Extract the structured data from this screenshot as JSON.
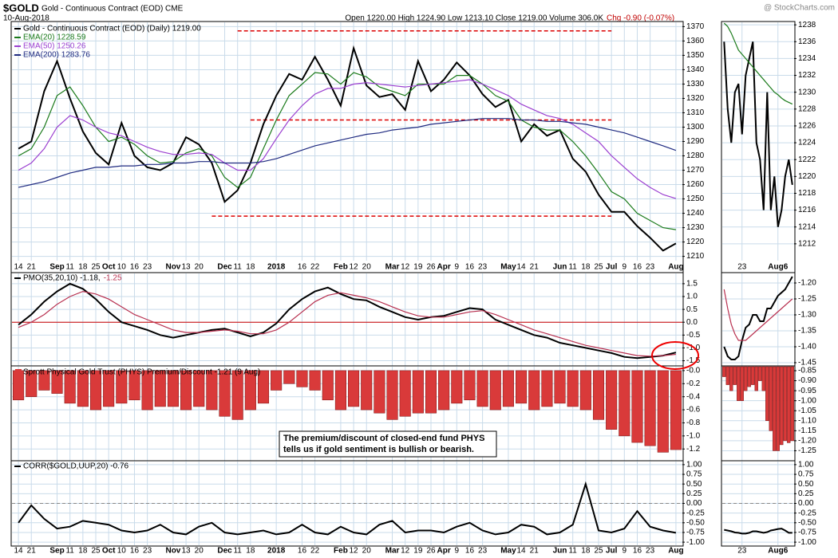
{
  "header": {
    "symbol": "$GOLD",
    "name": "Gold - Continuous Contract (EOD) CME",
    "date": "10-Aug-2018",
    "quote": "Open 1220.00 High 1224.90 Low 1213.10 Close 1219.00 Volume 306.0K",
    "change": "Chg -0.90 (-0.07%)",
    "watermark": "@ StockCharts.com"
  },
  "chart_data": [
    {
      "type": "line",
      "categories": [
        "14",
        "21",
        null,
        "Sep",
        "11",
        "18",
        "25",
        "Oct",
        "10",
        "16",
        "23",
        null,
        "Nov",
        "13",
        "20",
        null,
        "Dec",
        "11",
        "18",
        null,
        "2018",
        null,
        "16",
        "22",
        null,
        "Feb",
        "12",
        "20",
        null,
        "Mar",
        "12",
        "19",
        "26",
        "Apr",
        "9",
        "16",
        "23",
        null,
        "May",
        "14",
        "21",
        null,
        "Jun",
        "11",
        "18",
        "25",
        "Jul",
        "9",
        "16",
        "23",
        null,
        "Aug"
      ],
      "series": [
        {
          "name": "Gold - Continuous Contract (EOD) (Daily) 1219.00",
          "color": "#000000",
          "values": [
            1285,
            1290,
            1325,
            1346,
            1320,
            1297,
            1282,
            1274,
            1303,
            1280,
            1272,
            1270,
            1275,
            1293,
            1288,
            1275,
            1248,
            1256,
            1275,
            1302,
            1322,
            1337,
            1333,
            1349,
            1333,
            1315,
            1355,
            1329,
            1321,
            1323,
            1312,
            1346,
            1325,
            1333,
            1345,
            1336,
            1323,
            1314,
            1319,
            1290,
            1302,
            1294,
            1298,
            1278,
            1269,
            1253,
            1241,
            1241,
            1231,
            1223,
            1214,
            1219
          ]
        },
        {
          "name": "EMA(20) 1228.59",
          "color": "#1a7a1a",
          "values": [
            1280,
            1285,
            1300,
            1322,
            1328,
            1315,
            1300,
            1290,
            1293,
            1288,
            1280,
            1275,
            1276,
            1282,
            1285,
            1280,
            1265,
            1258,
            1265,
            1285,
            1305,
            1322,
            1330,
            1338,
            1337,
            1330,
            1338,
            1335,
            1328,
            1325,
            1322,
            1330,
            1330,
            1330,
            1336,
            1336,
            1330,
            1322,
            1318,
            1305,
            1300,
            1298,
            1298,
            1290,
            1280,
            1268,
            1255,
            1250,
            1240,
            1235,
            1230,
            1228.59
          ]
        },
        {
          "name": "EMA(50) 1250.26",
          "color": "#9b3fd0",
          "values": [
            1270,
            1275,
            1285,
            1300,
            1308,
            1305,
            1300,
            1296,
            1294,
            1290,
            1286,
            1283,
            1281,
            1281,
            1282,
            1281,
            1275,
            1270,
            1270,
            1278,
            1292,
            1305,
            1315,
            1323,
            1327,
            1327,
            1330,
            1331,
            1330,
            1329,
            1328,
            1329,
            1330,
            1331,
            1332,
            1333,
            1330,
            1326,
            1322,
            1316,
            1312,
            1308,
            1306,
            1302,
            1296,
            1290,
            1280,
            1272,
            1264,
            1258,
            1253,
            1250.26
          ]
        },
        {
          "name": "EMA(200) 1283.76",
          "color": "#1f2a80",
          "values": [
            1258,
            1260,
            1262,
            1265,
            1268,
            1270,
            1272,
            1272,
            1273,
            1273,
            1274,
            1274,
            1275,
            1275,
            1276,
            1276,
            1275,
            1275,
            1275,
            1276,
            1278,
            1281,
            1284,
            1287,
            1289,
            1291,
            1293,
            1295,
            1296,
            1298,
            1299,
            1300,
            1302,
            1303,
            1304,
            1305,
            1306,
            1306,
            1306,
            1305,
            1305,
            1304,
            1304,
            1303,
            1302,
            1300,
            1298,
            1296,
            1293,
            1290,
            1287,
            1283.76
          ]
        }
      ],
      "ylim": [
        1207,
        1373
      ],
      "yticks": [
        1210,
        1220,
        1230,
        1240,
        1250,
        1260,
        1270,
        1280,
        1290,
        1300,
        1310,
        1320,
        1330,
        1340,
        1350,
        1360,
        1370
      ],
      "hlines": [
        1367,
        1305,
        1238
      ],
      "hline_color": "#dd0000",
      "grid": true
    },
    {
      "type": "line",
      "series": [
        {
          "name": "PMO(35,20,10) -1.18,",
          "color": "#000000",
          "values": [
            -0.1,
            0.3,
            0.8,
            1.2,
            1.5,
            1.3,
            0.9,
            0.4,
            0.0,
            -0.15,
            -0.3,
            -0.5,
            -0.6,
            -0.5,
            -0.4,
            -0.3,
            -0.25,
            -0.4,
            -0.55,
            -0.4,
            -0.05,
            0.5,
            0.9,
            1.2,
            1.35,
            1.1,
            0.9,
            0.85,
            0.6,
            0.4,
            0.2,
            0.1,
            0.2,
            0.25,
            0.4,
            0.55,
            0.5,
            0.1,
            -0.1,
            -0.3,
            -0.5,
            -0.6,
            -0.8,
            -0.9,
            -1.0,
            -1.1,
            -1.2,
            -1.35,
            -1.4,
            -1.35,
            -1.3,
            -1.18
          ]
        },
        {
          "name": "-1.25",
          "color": "#b8304f",
          "values": [
            -0.2,
            0.0,
            0.3,
            0.7,
            1.0,
            1.2,
            1.1,
            0.9,
            0.6,
            0.3,
            0.1,
            -0.1,
            -0.3,
            -0.4,
            -0.4,
            -0.35,
            -0.3,
            -0.35,
            -0.45,
            -0.45,
            -0.3,
            0.0,
            0.4,
            0.8,
            1.05,
            1.15,
            1.05,
            0.95,
            0.8,
            0.6,
            0.4,
            0.25,
            0.2,
            0.2,
            0.3,
            0.4,
            0.45,
            0.3,
            0.1,
            -0.1,
            -0.3,
            -0.45,
            -0.6,
            -0.75,
            -0.9,
            -1.0,
            -1.1,
            -1.2,
            -1.3,
            -1.32,
            -1.3,
            -1.25
          ]
        }
      ],
      "ylim": [
        -1.7,
        1.9
      ],
      "yticks": [
        1.5,
        {
          "value": 1,
          "label": "1.0"
        },
        0.5,
        {
          "value": 0,
          "label": "0.0"
        },
        -0.5,
        {
          "value": -1,
          "label": "-1.0"
        },
        -1.5
      ],
      "hlines": [
        0
      ],
      "hline_color": "#cc0000",
      "grid": true
    },
    {
      "type": "bar",
      "title": "Sprott Physical Gold Trust (PHYS) Premium/Discount -1.21 (9 Aug)",
      "color": "#d93a3a",
      "values": [
        -0.45,
        -0.4,
        -0.3,
        -0.35,
        -0.5,
        -0.55,
        -0.6,
        -0.55,
        -0.5,
        -0.45,
        -0.6,
        -0.55,
        -0.55,
        -0.6,
        -0.55,
        -0.6,
        -0.7,
        -0.75,
        -0.6,
        -0.5,
        -0.3,
        -0.2,
        -0.25,
        -0.3,
        -0.45,
        -0.6,
        -0.55,
        -0.6,
        -0.65,
        -0.75,
        -0.7,
        -0.65,
        -0.65,
        -0.6,
        -0.5,
        -0.45,
        -0.55,
        -0.6,
        -0.55,
        -0.5,
        -0.6,
        -0.55,
        -0.5,
        -0.55,
        -0.6,
        -0.75,
        -0.9,
        -1.0,
        -1.1,
        -1.15,
        -1.25,
        -1.21
      ],
      "annotation": [
        "The premium/discount of closed-end fund PHYS",
        "tells us if gold sentiment is bullish or bearish."
      ],
      "ylim": [
        -1.38,
        0.06
      ],
      "yticks": [
        {
          "value": 0,
          "label": "-0.0"
        },
        -0.2,
        -0.4,
        -0.6,
        -0.8,
        {
          "value": -1,
          "label": "-1.0"
        },
        -1.2
      ],
      "grid": true
    },
    {
      "type": "line",
      "series": [
        {
          "name": "CORR($GOLD,UUP,20) -0.76",
          "color": "#000000",
          "values": [
            -0.5,
            -0.05,
            -0.4,
            -0.65,
            -0.6,
            -0.45,
            -0.5,
            -0.55,
            -0.7,
            -0.75,
            -0.7,
            -0.55,
            -0.75,
            -0.8,
            -0.6,
            -0.5,
            -0.75,
            -0.8,
            -0.75,
            -0.7,
            -0.8,
            -0.75,
            -0.55,
            -0.75,
            -0.8,
            -0.6,
            -0.75,
            -0.8,
            -0.55,
            -0.45,
            -0.75,
            -0.7,
            -0.7,
            -0.75,
            -0.6,
            -0.5,
            -0.7,
            -0.8,
            -0.75,
            -0.55,
            -0.6,
            -0.8,
            -0.75,
            -0.55,
            0.5,
            -0.7,
            -0.75,
            -0.65,
            -0.2,
            -0.6,
            -0.7,
            -0.76
          ]
        }
      ],
      "ylim": [
        -1.08,
        1.08
      ],
      "yticks": [
        {
          "value": 1,
          "label": "1.00"
        },
        0.75,
        {
          "value": 0.5,
          "label": "0.50"
        },
        0.25,
        {
          "value": 0,
          "label": "0.00"
        },
        -0.25,
        {
          "value": -0.5,
          "label": "-0.50"
        },
        -0.75,
        {
          "value": -1,
          "label": "-1.00"
        }
      ],
      "hlines": [
        0
      ],
      "hline_color": "#888888",
      "grid": true
    },
    {
      "type": "line",
      "categories": [
        null,
        null,
        null,
        null,
        null,
        "23",
        null,
        null,
        null,
        null,
        null,
        null,
        null,
        null,
        null,
        "Aug6",
        null,
        null,
        null,
        null
      ],
      "series": [
        {
          "color": "#000000",
          "values": [
            1236,
            1228,
            1224,
            1230,
            1231,
            1225,
            1232,
            1234,
            1236,
            1224,
            1222,
            1216,
            1230,
            1216,
            1220,
            1214,
            1216,
            1220,
            1222,
            1219
          ]
        },
        {
          "color": "#1a7a1a",
          "values": [
            1238.2,
            1237.8,
            1237,
            1236,
            1235,
            1234.5,
            1234,
            1233.5,
            1233,
            1232.5,
            1232,
            1231.5,
            1231,
            1230.5,
            1230,
            1229.7,
            1229.3,
            1229,
            1228.8,
            1228.59
          ]
        }
      ],
      "ylim": [
        1210,
        1238.3
      ],
      "yticks": [
        1212,
        1214,
        1216,
        1218,
        1220,
        1222,
        1224,
        1226,
        1228,
        1230,
        1232,
        1234,
        1236,
        1238
      ],
      "grid": true
    },
    {
      "type": "line",
      "series": [
        {
          "color": "#000000",
          "values": [
            -1.4,
            -1.43,
            -1.44,
            -1.44,
            -1.43,
            -1.38,
            -1.34,
            -1.33,
            -1.3,
            -1.3,
            -1.32,
            -1.32,
            -1.28,
            -1.28,
            -1.26,
            -1.24,
            -1.23,
            -1.22,
            -1.2,
            -1.18
          ]
        },
        {
          "color": "#b8304f",
          "values": [
            -1.22,
            -1.28,
            -1.33,
            -1.36,
            -1.38,
            -1.38,
            -1.38,
            -1.37,
            -1.36,
            -1.35,
            -1.34,
            -1.33,
            -1.32,
            -1.31,
            -1.3,
            -1.29,
            -1.28,
            -1.27,
            -1.26,
            -1.25
          ]
        }
      ],
      "ylim": [
        -1.46,
        -1.17
      ],
      "yticks": [
        {
          "value": -1.2,
          "label": "-1.20"
        },
        -1.25,
        {
          "value": -1.3,
          "label": "-1.30"
        },
        -1.35,
        {
          "value": -1.4,
          "label": "-1.40"
        },
        -1.45
      ],
      "grid": true
    },
    {
      "type": "bar",
      "color": "#d93a3a",
      "values": [
        -0.88,
        -0.92,
        -0.95,
        -0.92,
        -1.0,
        -1.0,
        -0.95,
        -0.93,
        -0.92,
        -0.95,
        -0.9,
        -0.95,
        -1.1,
        -1.15,
        -1.25,
        -1.25,
        -1.22,
        -1.2,
        -1.21,
        -1.2
      ],
      "ylim": [
        -1.3,
        -0.83
      ],
      "yticks": [
        -0.85,
        {
          "value": -0.9,
          "label": "-0.90"
        },
        -0.95,
        {
          "value": -1,
          "label": "-1.00"
        },
        -1.05,
        {
          "value": -1.1,
          "label": "-1.10"
        },
        -1.15,
        {
          "value": -1.2,
          "label": "-1.20"
        },
        -1.25
      ],
      "grid": true
    },
    {
      "type": "line",
      "series": [
        {
          "color": "#000000",
          "values": [
            -0.68,
            -0.7,
            -0.72,
            -0.75,
            -0.76,
            -0.78,
            -0.78,
            -0.76,
            -0.72,
            -0.72,
            -0.74,
            -0.76,
            -0.74,
            -0.7,
            -0.68,
            -0.66,
            -0.65,
            -0.7,
            -0.76,
            -0.76
          ]
        }
      ],
      "ylim": [
        -1.08,
        1.08
      ],
      "yticks": [
        {
          "value": 1,
          "label": "1.00"
        },
        0.75,
        {
          "value": 0.5,
          "label": "0.50"
        },
        0.25,
        {
          "value": 0,
          "label": "0.00"
        },
        -0.25,
        {
          "value": -0.5,
          "label": "-0.50"
        },
        -0.75,
        {
          "value": -1,
          "label": "-1.00"
        }
      ],
      "hlines": [
        0
      ],
      "hline_color": "#888888",
      "grid": true
    }
  ]
}
